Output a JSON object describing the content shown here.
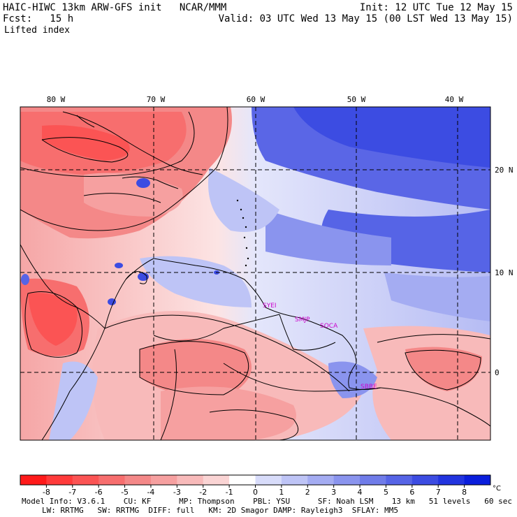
{
  "header": {
    "title": "HAIC-HIWC 13km ARW-GFS init   NCAR/MMM",
    "forecast": "Fcst:   15 h",
    "field": "Lifted index",
    "init": "Init: 12 UTC Tue 12 May 15",
    "valid": "Valid: 03 UTC Wed 13 May 15 (00 LST Wed 13 May 15)"
  },
  "map": {
    "lon_labels": [
      "80 W",
      "70 W",
      "60 W",
      "50 W",
      "40 W"
    ],
    "lat_labels": [
      "20 N",
      "10 N",
      "0"
    ],
    "stations": [
      "SYEI",
      "SMJP",
      "SOCA",
      "SBBE"
    ]
  },
  "colorbar": {
    "labels": [
      "-8",
      "-7",
      "-6",
      "-5",
      "-4",
      "-3",
      "-2",
      "-1",
      "0",
      "1",
      "2",
      "3",
      "4",
      "5",
      "6",
      "7",
      "8"
    ],
    "unit": "°C",
    "colors": [
      "#ff1a1a",
      "#ff3a3a",
      "#fb5454",
      "#f76e6e",
      "#f48888",
      "#f6a0a0",
      "#f8baba",
      "#fad4d4",
      "#ffffff",
      "#d8dcfa",
      "#bec4f6",
      "#a4acf2",
      "#8a94ee",
      "#707ce9",
      "#5664e6",
      "#3c4ce2",
      "#2234df",
      "#0a1edc"
    ]
  },
  "footer": {
    "line1": "Model Info: V3.6.1    CU: KF      MP: Thompson    PBL: YSU      SF: Noah LSM    13 km   51 levels   60 sec",
    "line2": "LW: RRTMG   SW: RRTMG  DIFF: full   KM: 2D Smagor DAMP: Rayleigh3  SFLAY: MM5"
  }
}
